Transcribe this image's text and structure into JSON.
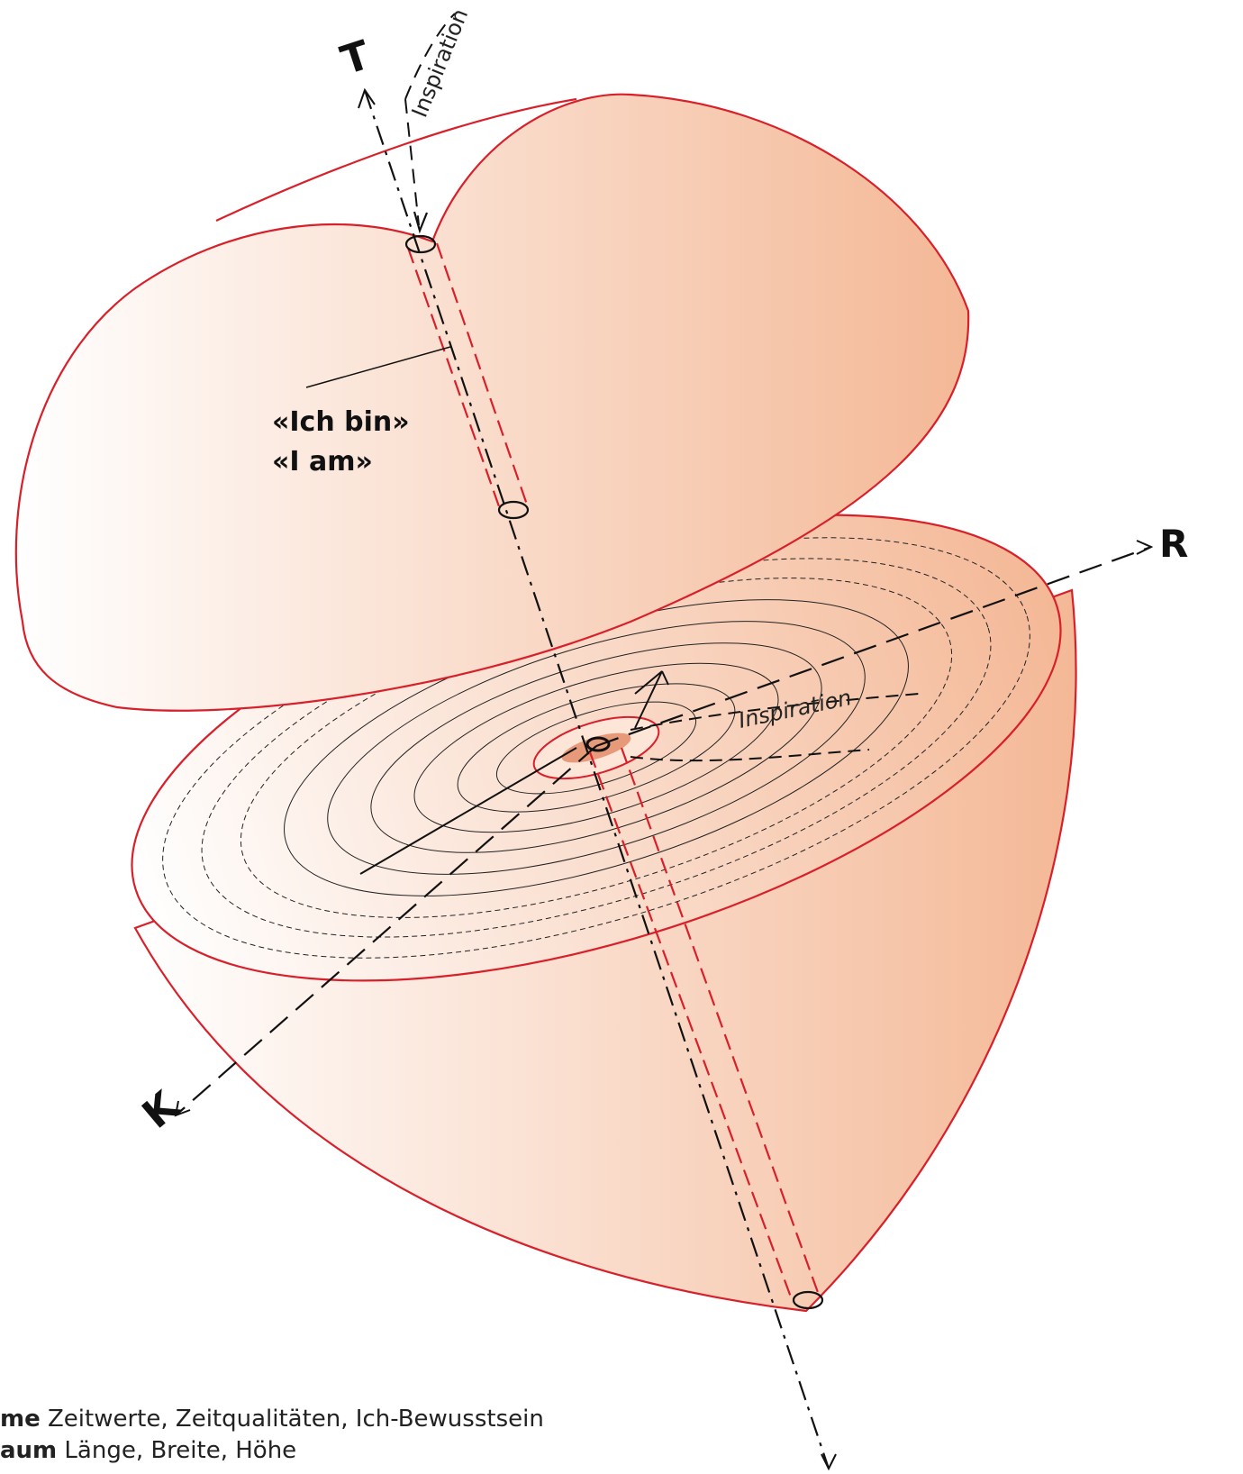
{
  "labels": {
    "axis_t": "T",
    "axis_r": "R",
    "axis_k": "K",
    "inspiration_top": "Inspiration",
    "inspiration_disk": "Inspiration",
    "ich_bin": "«Ich bin»",
    "i_am": "«I am»"
  },
  "legend": [
    {
      "term": "me",
      "text": "Zeitwerte, Zeitqualitäten, Ich-Bewusstsein"
    },
    {
      "term": "aum",
      "text": "Länge, Breite, Höhe"
    }
  ]
}
